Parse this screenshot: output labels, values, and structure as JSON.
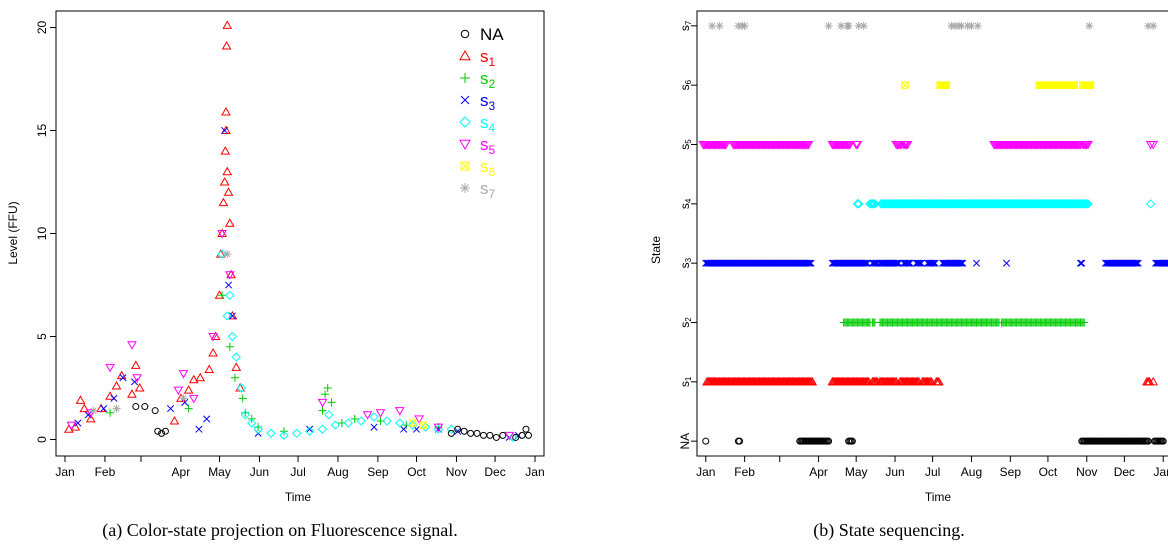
{
  "colors": {
    "NA": "#000000",
    "s1": "#ff0000",
    "s2": "#00cc00",
    "s3": "#0000ff",
    "s4": "#00ffff",
    "s5": "#ff00ff",
    "s6": "#ffff00",
    "s7": "#aaaaaa"
  },
  "captions": {
    "a": "(a) Color-state projection on Fluorescence signal.",
    "b": "(b) State sequencing."
  },
  "chart_data": [
    {
      "type": "scatter",
      "ylabel": "Level (FFU)",
      "xlabel": "Time",
      "x_ticks": [
        "Jan",
        "Feb",
        "Apr",
        "May",
        "Jun",
        "Jul",
        "Aug",
        "Sep",
        "Oct",
        "Nov",
        "Dec",
        "Jan"
      ],
      "y_ticks": [
        0,
        5,
        10,
        15,
        20
      ],
      "ylim": [
        -0.8,
        20.8
      ],
      "x_unit": "day of year",
      "xlim": [
        -7,
        372
      ],
      "legend_position": "top-right",
      "legend": [
        {
          "label": "NA",
          "marker": "circle",
          "state": "NA"
        },
        {
          "label": "s",
          "sub": "1",
          "marker": "triangle-up",
          "state": "s1"
        },
        {
          "label": "s",
          "sub": "2",
          "marker": "plus",
          "state": "s2"
        },
        {
          "label": "s",
          "sub": "3",
          "marker": "cross",
          "state": "s3"
        },
        {
          "label": "s",
          "sub": "4",
          "marker": "diamond",
          "state": "s4"
        },
        {
          "label": "s",
          "sub": "5",
          "marker": "triangle-down",
          "state": "s5"
        },
        {
          "label": "s",
          "sub": "6",
          "marker": "square-x",
          "state": "s6"
        },
        {
          "label": "s",
          "sub": "7",
          "marker": "asterisk",
          "state": "s7"
        }
      ],
      "series": [
        {
          "state": "s1",
          "points": [
            [
              3,
              0.5
            ],
            [
              8,
              0.6
            ],
            [
              12,
              1.9
            ],
            [
              15,
              1.5
            ],
            [
              20,
              1.0
            ],
            [
              28,
              1.5
            ],
            [
              35,
              2.1
            ],
            [
              40,
              2.6
            ],
            [
              44,
              3.1
            ],
            [
              52,
              2.2
            ],
            [
              55,
              3.6
            ],
            [
              58,
              2.5
            ],
            [
              85,
              0.9
            ],
            [
              90,
              2.0
            ],
            [
              96,
              2.4
            ],
            [
              100,
              2.9
            ],
            [
              105,
              3.0
            ],
            [
              112,
              3.4
            ],
            [
              115,
              4.2
            ],
            [
              117,
              5.0
            ],
            [
              120,
              7.0
            ],
            [
              121,
              9.0
            ],
            [
              122,
              10.0
            ],
            [
              123,
              11.5
            ],
            [
              124,
              12.5
            ],
            [
              124.5,
              14.0
            ],
            [
              125,
              15.0
            ],
            [
              125,
              15.9
            ],
            [
              125.5,
              19.1
            ],
            [
              126,
              20.1
            ],
            [
              126,
              13.0
            ],
            [
              127,
              12.0
            ],
            [
              128,
              10.5
            ],
            [
              129,
              8.0
            ],
            [
              130,
              6.0
            ],
            [
              133,
              3.5
            ],
            [
              136,
              2.5
            ]
          ]
        },
        {
          "state": "s2",
          "points": [
            [
              35,
              1.3
            ],
            [
              96,
              1.5
            ],
            [
              122,
              7.0
            ],
            [
              128,
              4.5
            ],
            [
              132,
              3.0
            ],
            [
              138,
              2.0
            ],
            [
              140,
              1.3
            ],
            [
              145,
              1.0
            ],
            [
              150,
              0.6
            ],
            [
              170,
              0.4
            ],
            [
              200,
              1.4
            ],
            [
              202,
              2.2
            ],
            [
              204,
              2.5
            ],
            [
              207,
              1.8
            ],
            [
              215,
              0.8
            ],
            [
              225,
              1.0
            ],
            [
              245,
              0.9
            ],
            [
              265,
              0.7
            ],
            [
              290,
              0.6
            ]
          ]
        },
        {
          "state": "s3",
          "points": [
            [
              10,
              0.8
            ],
            [
              18,
              1.2
            ],
            [
              30,
              1.5
            ],
            [
              38,
              2.0
            ],
            [
              45,
              3.0
            ],
            [
              54,
              2.8
            ],
            [
              82,
              1.5
            ],
            [
              93,
              1.8
            ],
            [
              104,
              0.5
            ],
            [
              110,
              1.0
            ],
            [
              124,
              15.0
            ],
            [
              127,
              7.5
            ],
            [
              130,
              6.0
            ],
            [
              150,
              0.3
            ],
            [
              190,
              0.5
            ],
            [
              240,
              0.6
            ],
            [
              263,
              0.5
            ],
            [
              273,
              0.5
            ],
            [
              290,
              0.5
            ],
            [
              305,
              0.4
            ],
            [
              345,
              0.1
            ],
            [
              352,
              0.2
            ]
          ]
        },
        {
          "state": "s4",
          "points": [
            [
              122,
              9.0
            ],
            [
              126,
              6.0
            ],
            [
              128,
              7.0
            ],
            [
              130,
              5.0
            ],
            [
              133,
              4.0
            ],
            [
              137,
              2.5
            ],
            [
              140,
              1.2
            ],
            [
              145,
              0.8
            ],
            [
              150,
              0.5
            ],
            [
              160,
              0.3
            ],
            [
              170,
              0.2
            ],
            [
              180,
              0.3
            ],
            [
              190,
              0.4
            ],
            [
              200,
              0.5
            ],
            [
              205,
              1.2
            ],
            [
              210,
              0.7
            ],
            [
              220,
              0.8
            ],
            [
              230,
              0.9
            ],
            [
              240,
              1.1
            ],
            [
              250,
              0.9
            ],
            [
              260,
              0.8
            ],
            [
              270,
              0.7
            ],
            [
              280,
              0.6
            ],
            [
              290,
              0.5
            ],
            [
              300,
              0.5
            ],
            [
              348,
              0.1
            ]
          ]
        },
        {
          "state": "s5",
          "points": [
            [
              5,
              0.7
            ],
            [
              20,
              1.3
            ],
            [
              35,
              3.5
            ],
            [
              52,
              4.6
            ],
            [
              56,
              3.0
            ],
            [
              88,
              2.4
            ],
            [
              92,
              3.2
            ],
            [
              100,
              2.0
            ],
            [
              115,
              5.0
            ],
            [
              122,
              10.0
            ],
            [
              128,
              8.0
            ],
            [
              200,
              1.8
            ],
            [
              235,
              1.2
            ],
            [
              245,
              1.3
            ],
            [
              260,
              1.4
            ],
            [
              275,
              1.0
            ],
            [
              290,
              0.6
            ],
            [
              345,
              0.2
            ]
          ]
        },
        {
          "state": "s6",
          "points": [
            [
              270,
              0.8
            ],
            [
              278,
              0.7
            ]
          ]
        },
        {
          "state": "s7",
          "points": [
            [
              22,
              1.4
            ],
            [
              40,
              1.5
            ],
            [
              92,
              2.0
            ],
            [
              126,
              9.0
            ]
          ]
        },
        {
          "state": "NA",
          "points": [
            [
              55,
              1.6
            ],
            [
              62,
              1.6
            ],
            [
              70,
              1.4
            ],
            [
              72,
              0.4
            ],
            [
              75,
              0.3
            ],
            [
              78,
              0.4
            ],
            [
              300,
              0.3
            ],
            [
              305,
              0.5
            ],
            [
              310,
              0.4
            ],
            [
              315,
              0.3
            ],
            [
              320,
              0.3
            ],
            [
              325,
              0.2
            ],
            [
              330,
              0.2
            ],
            [
              335,
              0.1
            ],
            [
              340,
              0.2
            ],
            [
              350,
              0.1
            ],
            [
              355,
              0.2
            ],
            [
              358,
              0.5
            ],
            [
              360,
              0.2
            ]
          ]
        }
      ]
    },
    {
      "type": "scatter",
      "ylabel": "State",
      "xlabel": "Time",
      "x_ticks": [
        "Jan",
        "Feb",
        "Apr",
        "May",
        "Jun",
        "Jul",
        "Aug",
        "Sep",
        "Oct",
        "Nov",
        "Dec",
        "Jan"
      ],
      "y_categories": [
        {
          "label": "NA",
          "sub": ""
        },
        {
          "label": "s",
          "sub": "1"
        },
        {
          "label": "s",
          "sub": "2"
        },
        {
          "label": "s",
          "sub": "3"
        },
        {
          "label": "s",
          "sub": "4"
        },
        {
          "label": "s",
          "sub": "5"
        },
        {
          "label": "s",
          "sub": "6"
        },
        {
          "label": "s",
          "sub": "7"
        }
      ],
      "x_unit": "day of year",
      "xlim": [
        -7,
        372
      ],
      "ylim": [
        -0.25,
        7.25
      ],
      "series": [
        {
          "state": "NA",
          "days": [
            0,
            26,
            27,
            75,
            76,
            77,
            78,
            79,
            80,
            81,
            82,
            83,
            84,
            85,
            86,
            87,
            88,
            89,
            90,
            91,
            92,
            93,
            94,
            95,
            96,
            97,
            98,
            114,
            115,
            116,
            117,
            300,
            301,
            302,
            303,
            304,
            305,
            306,
            307,
            308,
            309,
            310,
            311,
            312,
            313,
            314,
            315,
            316,
            317,
            318,
            319,
            320,
            321,
            322,
            323,
            324,
            325,
            326,
            327,
            328,
            329,
            330,
            331,
            332,
            333,
            334,
            335,
            336,
            337,
            338,
            339,
            340,
            341,
            342,
            343,
            344,
            345,
            346,
            347,
            348,
            349,
            350,
            351,
            352,
            353,
            358,
            359,
            360,
            361,
            362,
            363,
            364,
            365
          ]
        },
        {
          "state": "s1",
          "ranges": [
            [
              1,
              85
            ],
            [
              101,
              130
            ],
            [
              133,
              137
            ],
            [
              139,
              150
            ],
            [
              151,
              152
            ],
            [
              155,
              170
            ],
            [
              173,
              180
            ],
            [
              184,
              186
            ]
          ],
          "days": [
            357,
            352,
            353,
            354
          ]
        },
        {
          "state": "s2",
          "ranges": [
            [
              110,
              120
            ],
            [
              121,
              131
            ],
            [
              133,
              135
            ],
            [
              139,
              175
            ],
            [
              176,
              234
            ],
            [
              236,
              302
            ]
          ]
        },
        {
          "state": "s3",
          "ranges": [
            [
              0,
              84
            ],
            [
              101,
              129
            ],
            [
              133,
              137
            ],
            [
              139,
              154
            ],
            [
              158,
              163
            ],
            [
              168,
              172
            ],
            [
              177,
              183
            ],
            [
              189,
              194
            ],
            [
              195,
              205
            ],
            [
              319,
              330
            ],
            [
              331,
              345
            ],
            [
              359,
              373
            ]
          ],
          "days": [
            162,
            216,
            240,
            299,
            300
          ]
        },
        {
          "state": "s4",
          "ranges": [
            [
              121,
              122
            ],
            [
              131,
              135
            ],
            [
              140,
              305
            ]
          ],
          "days": [
            355
          ]
        },
        {
          "state": "s5",
          "ranges": [
            [
              -2,
              16
            ],
            [
              22,
              82
            ],
            [
              101,
              115
            ],
            [
              120,
              121
            ],
            [
              152,
              156
            ],
            [
              158,
              161
            ],
            [
              230,
              299
            ],
            [
              301,
              305
            ]
          ],
          "days": [
            355,
            357
          ]
        },
        {
          "state": "s6",
          "ranges": [
            [
              187,
              192
            ],
            [
              266,
              294
            ],
            [
              301,
              307
            ]
          ],
          "days": [
            159
          ]
        },
        {
          "state": "s7",
          "days": [
            5,
            11,
            26,
            29,
            31,
            98,
            108,
            113,
            114,
            122,
            126,
            196,
            199,
            202,
            204,
            209,
            212,
            217,
            306,
            353,
            357
          ]
        }
      ]
    }
  ]
}
